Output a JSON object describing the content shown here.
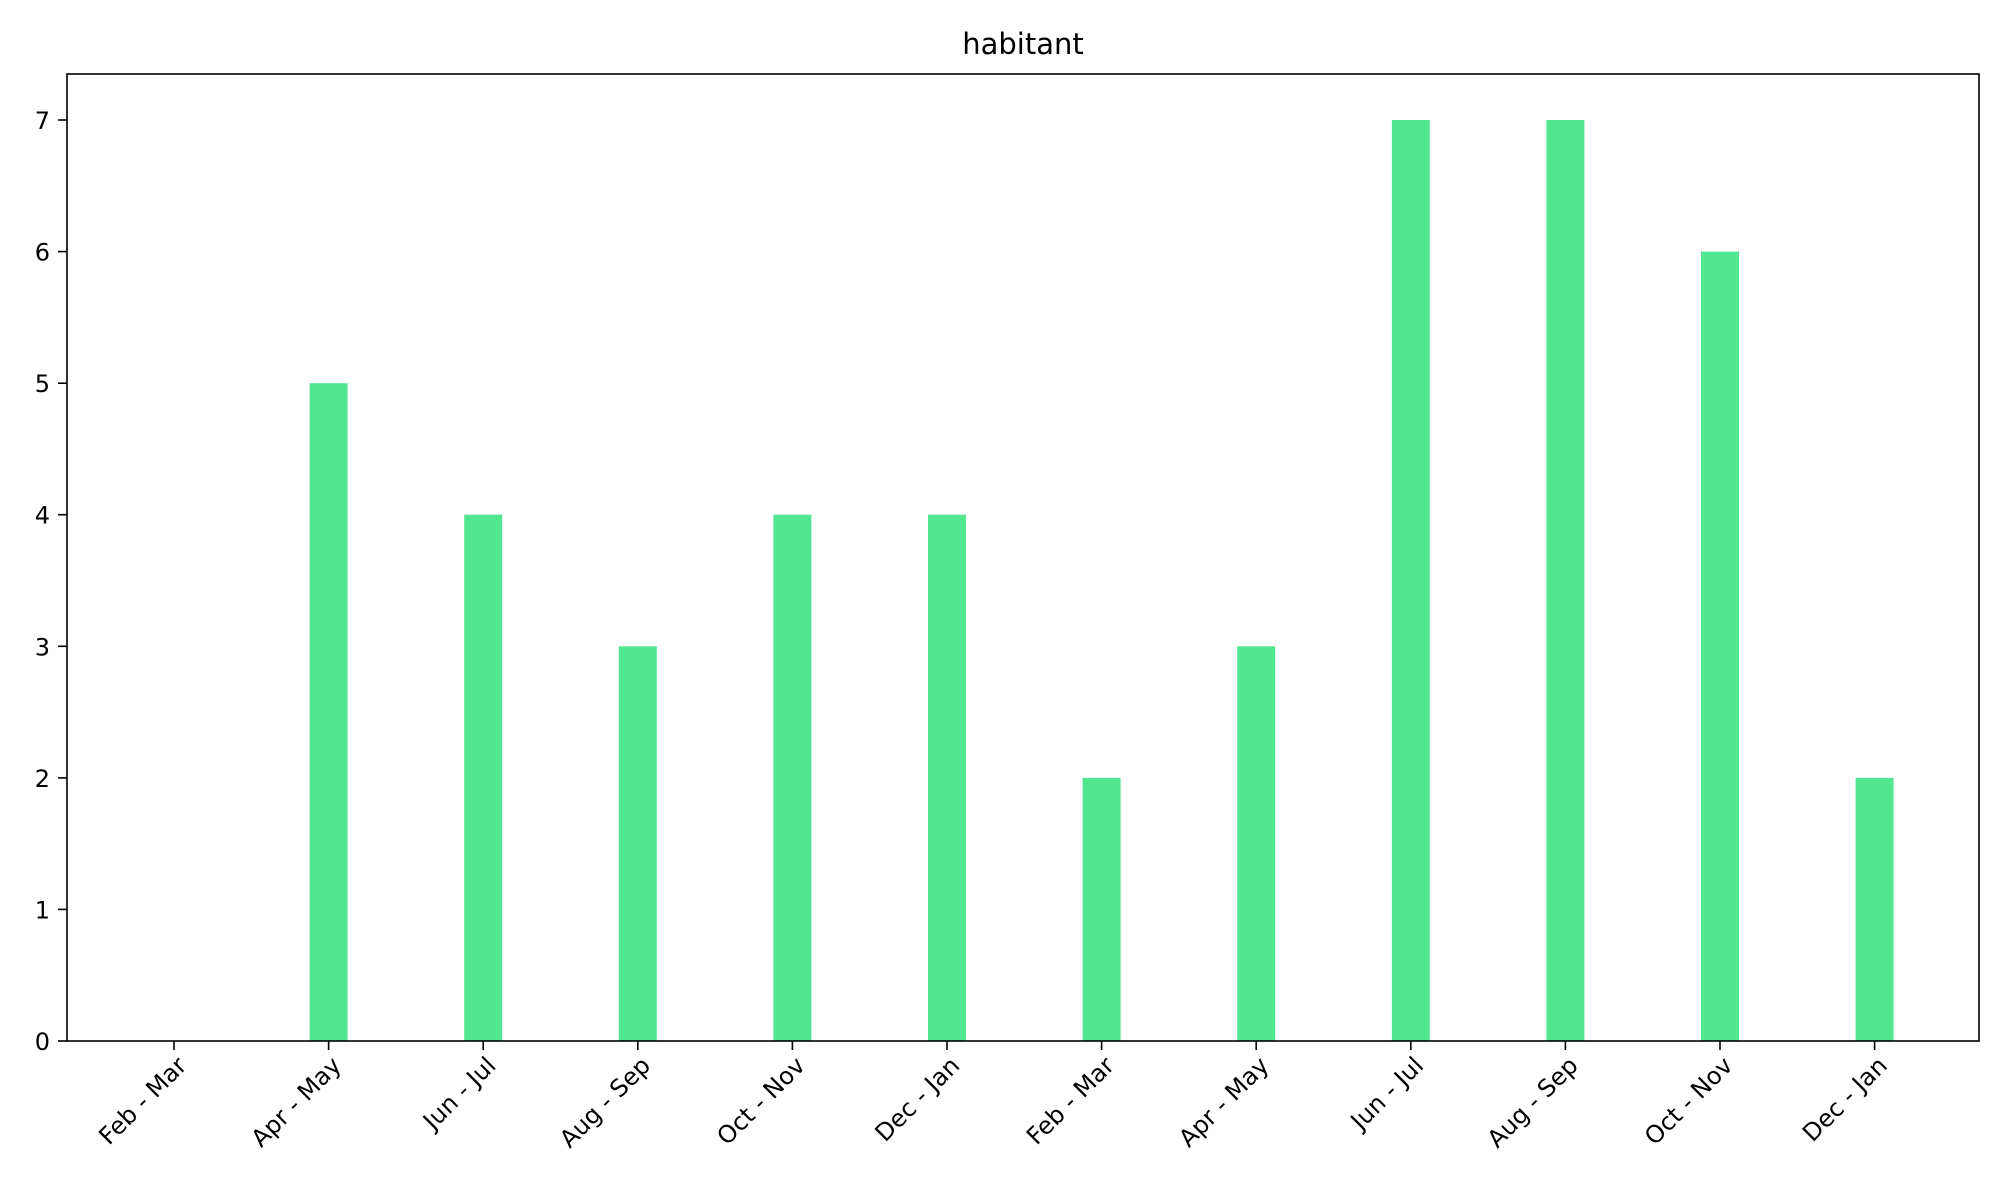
{
  "chart_data": {
    "type": "bar",
    "title": "habitant",
    "xlabel": "",
    "ylabel": "",
    "categories": [
      "Feb - Mar",
      "Apr - May",
      "Jun - Jul",
      "Aug - Sep",
      "Oct - Nov",
      "Dec - Jan",
      "Feb - Mar",
      "Apr - May",
      "Jun - Jul",
      "Aug - Sep",
      "Oct - Nov",
      "Dec - Jan"
    ],
    "values": [
      0,
      5,
      4,
      3,
      4,
      4,
      2,
      3,
      7,
      7,
      6,
      2
    ],
    "ylim": [
      0,
      7.35
    ],
    "yticks": [
      "0",
      "1",
      "2",
      "3",
      "4",
      "5",
      "6",
      "7"
    ],
    "bar_color": "#51e790",
    "grid": false,
    "legend": "none"
  }
}
